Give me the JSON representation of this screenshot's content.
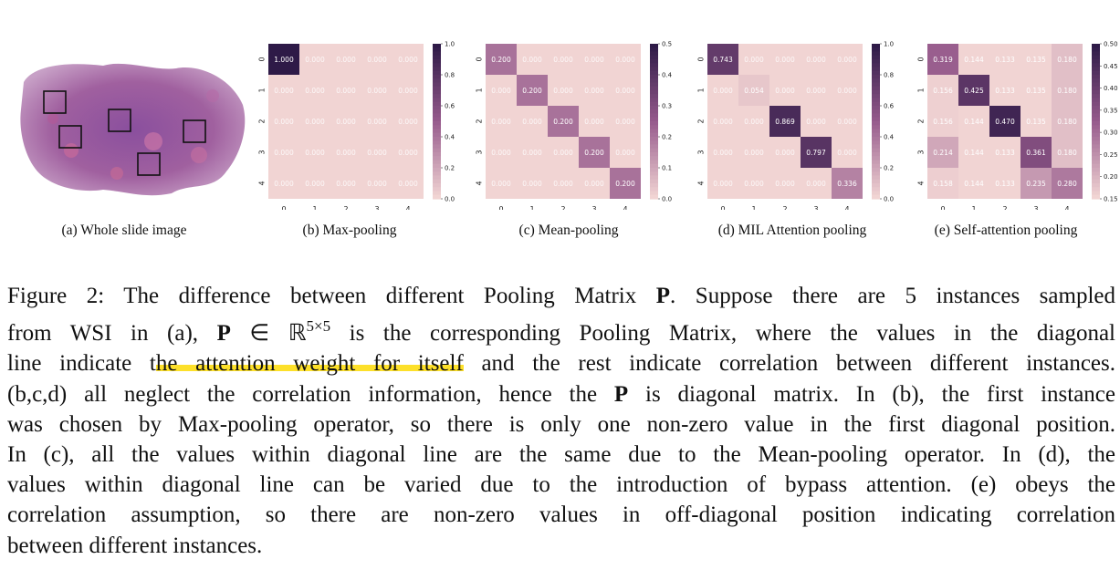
{
  "figure": {
    "subcaptions": {
      "a": "(a) Whole slide image",
      "b": "(b) Max-pooling",
      "c": "(c) Mean-pooling",
      "d": "(d) MIL Attention pooling",
      "e": "(e) Self-attention pooling"
    }
  },
  "chart_data": [
    {
      "type": "heatmap",
      "title": "(b) Max-pooling",
      "x_ticks": [
        "0",
        "1",
        "2",
        "3",
        "4"
      ],
      "y_ticks": [
        "0",
        "1",
        "2",
        "3",
        "4"
      ],
      "values": [
        [
          1.0,
          0,
          0,
          0,
          0
        ],
        [
          0,
          0,
          0,
          0,
          0
        ],
        [
          0,
          0,
          0,
          0,
          0
        ],
        [
          0,
          0,
          0,
          0,
          0
        ],
        [
          0,
          0,
          0,
          0,
          0
        ]
      ],
      "vmin": 0.0,
      "vmax": 1.0,
      "colorbar_ticks": [
        "0.0",
        "0.2",
        "0.4",
        "0.6",
        "0.8",
        "1.0"
      ]
    },
    {
      "type": "heatmap",
      "title": "(c) Mean-pooling",
      "x_ticks": [
        "0",
        "1",
        "2",
        "3",
        "4"
      ],
      "y_ticks": [
        "0",
        "1",
        "2",
        "3",
        "4"
      ],
      "values": [
        [
          0.2,
          0,
          0,
          0,
          0
        ],
        [
          0,
          0.2,
          0,
          0,
          0
        ],
        [
          0,
          0,
          0.2,
          0,
          0
        ],
        [
          0,
          0,
          0,
          0.2,
          0
        ],
        [
          0,
          0,
          0,
          0,
          0.2
        ]
      ],
      "vmin": 0.0,
      "vmax": 0.5,
      "colorbar_ticks": [
        "0.0",
        "0.1",
        "0.2",
        "0.3",
        "0.4",
        "0.5"
      ]
    },
    {
      "type": "heatmap",
      "title": "(d) MIL Attention pooling",
      "x_ticks": [
        "0",
        "1",
        "2",
        "3",
        "4"
      ],
      "y_ticks": [
        "0",
        "1",
        "2",
        "3",
        "4"
      ],
      "values": [
        [
          0.743,
          0,
          0,
          0,
          0
        ],
        [
          0,
          0.054,
          0,
          0,
          0
        ],
        [
          0,
          0,
          0.869,
          0,
          0
        ],
        [
          0,
          0,
          0,
          0.797,
          0
        ],
        [
          0,
          0,
          0,
          0,
          0.336
        ]
      ],
      "vmin": 0.0,
      "vmax": 1.0,
      "colorbar_ticks": [
        "0.0",
        "0.2",
        "0.4",
        "0.6",
        "0.8",
        "1.0"
      ]
    },
    {
      "type": "heatmap",
      "title": "(e) Self-attention pooling",
      "x_ticks": [
        "0",
        "1",
        "2",
        "3",
        "4"
      ],
      "y_ticks": [
        "0",
        "1",
        "2",
        "3",
        "4"
      ],
      "values": [
        [
          0.319,
          0.144,
          0.133,
          0.135,
          0.18
        ],
        [
          0.156,
          0.425,
          0.133,
          0.135,
          0.18
        ],
        [
          0.156,
          0.144,
          0.47,
          0.135,
          0.18
        ],
        [
          0.214,
          0.144,
          0.133,
          0.361,
          0.18
        ],
        [
          0.158,
          0.144,
          0.133,
          0.235,
          0.28
        ]
      ],
      "vmin": 0.15,
      "vmax": 0.5,
      "colorbar_ticks": [
        "0.15",
        "0.20",
        "0.25",
        "0.30",
        "0.35",
        "0.40",
        "0.45",
        "0.50"
      ]
    }
  ],
  "caption": {
    "line1_a": "Figure 2: The difference between different Pooling Matrix ",
    "symbol_P": "P",
    "line1_b": ". Suppose there are 5 instances sampled",
    "line2_a": "from WSI in (a), ",
    "line2_b": " ∈ ℝ",
    "line2_sup": "5×5",
    "line2_c": " is the corresponding Pooling Matrix, where the values in the diagonal",
    "line3_a": "line indicate t",
    "line3_hl": "he attention weight for itself",
    "line3_b": " and the rest indicate correlation between different instances.",
    "line4_a": "(b,c,d) all neglect the correlation information, hence the ",
    "line4_b": " is diagonal matrix. In (b), the first instance",
    "line5": "was chosen by Max-pooling operator, so there is only one non-zero value in the first diagonal position.",
    "line6": "In (c), all the values within diagonal line are the same due to the Mean-pooling operator. In (d), the",
    "line7": "values within diagonal line can be varied due to the introduction of bypass attention. (e) obeys the",
    "line8": "correlation assumption, so there are non-zero values in off-diagonal position indicating correlation",
    "line9": "between different instances."
  },
  "colors": {
    "low": "#f1d4d3",
    "high": "#2e1a47",
    "highlight": "#fde02a"
  }
}
